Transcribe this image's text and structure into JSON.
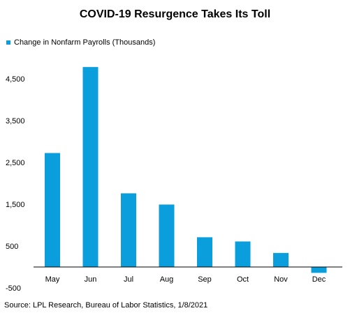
{
  "chart_data": {
    "type": "bar",
    "title": "COVID-19 Resurgence Takes Its Toll",
    "legend": "Change in Nonfarm Payrolls (Thousands)",
    "legend_position": "top-left",
    "categories": [
      "May",
      "Jun",
      "Jul",
      "Aug",
      "Sep",
      "Oct",
      "Nov",
      "Dec"
    ],
    "series": [
      {
        "name": "Change in Nonfarm Payrolls (Thousands)",
        "values": [
          2725,
          4781,
          1761,
          1493,
          711,
          610,
          336,
          -140
        ]
      }
    ],
    "yticks": [
      "4,500",
      "3,500",
      "2,500",
      "1,500",
      "500",
      "-500"
    ],
    "ylim": [
      -500,
      5000
    ],
    "grid": false,
    "color": "#0A9FDC"
  },
  "source": "Source: LPL Research, Bureau of Labor Statistics, 1/8/2021"
}
